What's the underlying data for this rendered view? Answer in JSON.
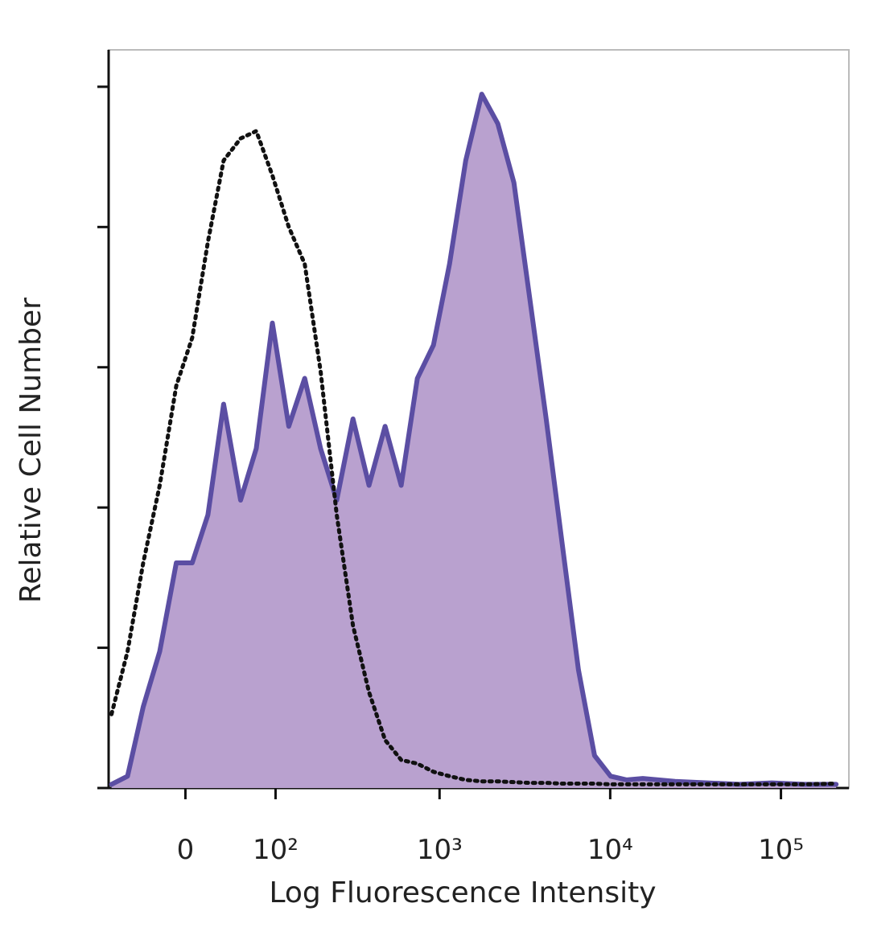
{
  "chart_data": {
    "type": "histogram-overlay",
    "xlabel": "Log Fluorescence Intensity",
    "ylabel": "Relative Cell Number",
    "xscale": "biexponential",
    "xlim": [
      -80,
      250000
    ],
    "xticks": [
      0,
      {
        "value": 100,
        "label": "10²"
      },
      {
        "value": 1000,
        "label": "10³"
      },
      {
        "value": 10000,
        "label": "10⁴"
      },
      {
        "value": 100000,
        "label": "10⁵"
      }
    ],
    "ylim": [
      0,
      100
    ],
    "yticks": [
      0,
      19,
      38,
      57,
      76,
      95
    ],
    "x": [
      -76,
      -56,
      -39,
      -23,
      -8,
      6,
      20,
      35,
      53,
      72,
      95,
      123,
      156,
      196,
      246,
      308,
      384,
      478,
      595,
      741,
      921,
      1145,
      1424,
      1768,
      2197,
      2730,
      3393,
      4218,
      5239,
      6513,
      8093,
      10056,
      12500,
      15530,
      23990,
      37050,
      57200,
      88300,
      136300,
      210500
    ],
    "series": [
      {
        "color": "#5b4ea3",
        "fill": "#b9a1cf",
        "style": "solid",
        "values": [
          0.5,
          1.6,
          11,
          18.5,
          30.5,
          30.5,
          37,
          52,
          39,
          46,
          63,
          49,
          55.5,
          46,
          39,
          50,
          41,
          49,
          41,
          55.5,
          60,
          71,
          85,
          94,
          90,
          82,
          66,
          50,
          33,
          16,
          4.4,
          1.6,
          1.1,
          1.3,
          0.9,
          0.7,
          0.5,
          0.7,
          0.5,
          0.5
        ]
      },
      {
        "color": "#111111",
        "fill": "none",
        "style": "dotted",
        "values": [
          10,
          18.5,
          30.5,
          41,
          54.5,
          61,
          74,
          85,
          88,
          89,
          83,
          76,
          71,
          56.5,
          37,
          22,
          13,
          6.5,
          3.8,
          3.3,
          2.2,
          1.6,
          1.1,
          0.9,
          0.9,
          0.8,
          0.7,
          0.7,
          0.6,
          0.6,
          0.6,
          0.5,
          0.5,
          0.5,
          0.5,
          0.5,
          0.5,
          0.5,
          0.5,
          0.6
        ]
      }
    ]
  }
}
